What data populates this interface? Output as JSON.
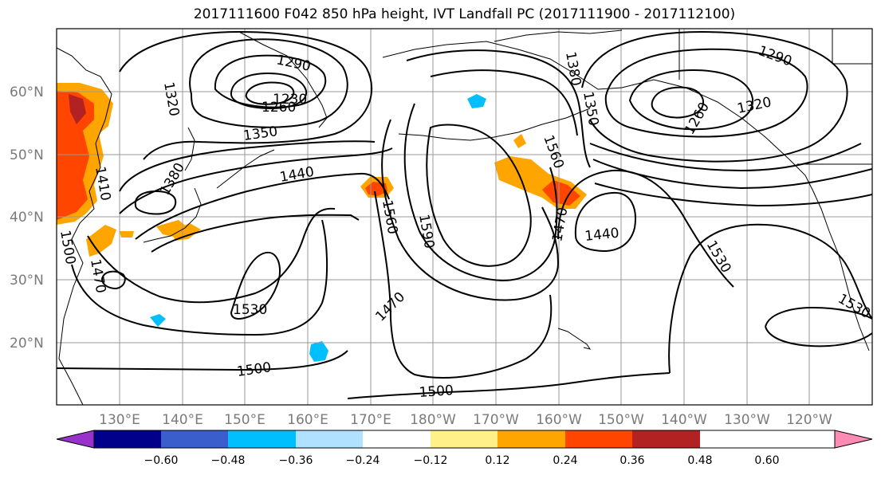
{
  "title": "2017111600 F042 850 hPa height, IVT Landfall PC (2017111900 - 2017112100)",
  "lat_labels": [
    "60°N",
    "50°N",
    "40°N",
    "30°N",
    "20°N"
  ],
  "lon_labels": [
    "130°E",
    "140°E",
    "150°E",
    "160°E",
    "170°E",
    "180°W",
    "170°W",
    "160°W",
    "150°W",
    "140°W",
    "130°W",
    "120°W"
  ],
  "contour_labels": [
    "1290",
    "1320",
    "1260",
    "1230",
    "1350",
    "1380",
    "1410",
    "1440",
    "1470",
    "1500",
    "1530",
    "1560",
    "1590",
    "1380",
    "1350",
    "1260",
    "1320",
    "1290",
    "1440",
    "1470",
    "1530",
    "1560",
    "1530",
    "1500",
    "1500",
    "1470"
  ],
  "colorbar": {
    "ticks": [
      "−0.60",
      "−0.48",
      "−0.36",
      "−0.24",
      "−0.12",
      "0.12",
      "0.24",
      "0.36",
      "0.48",
      "0.60"
    ],
    "colors": [
      "#9932cc",
      "#00008b",
      "#3a5fcd",
      "#00bfff",
      "#b0e2ff",
      "#ffffff",
      "#fff08a",
      "#ffa500",
      "#ff4500",
      "#b22222",
      "#ff8ab4"
    ]
  }
}
